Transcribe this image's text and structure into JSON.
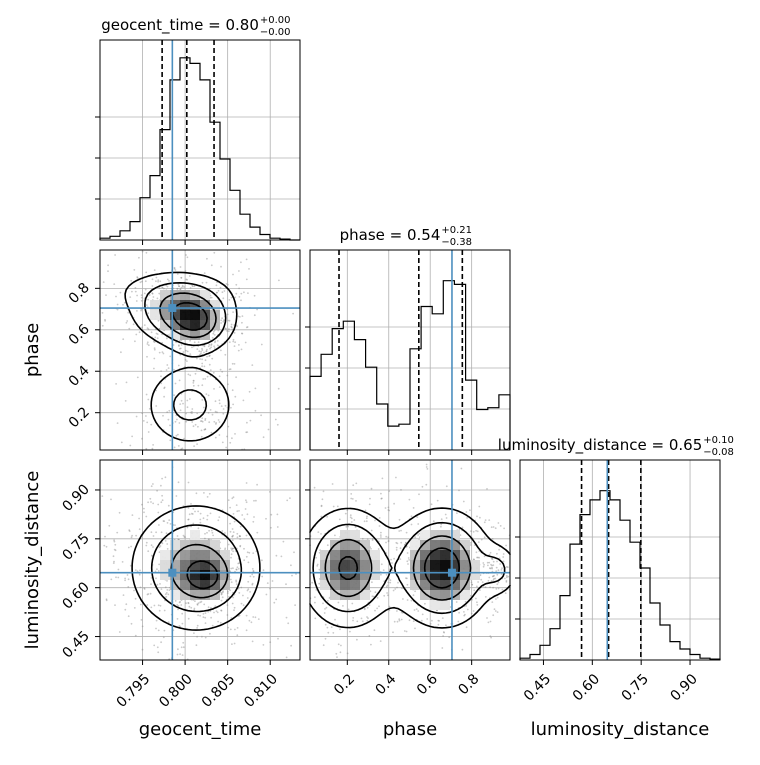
{
  "colors": {
    "truth": "#4c8fbf",
    "hist": "#000000",
    "grid": "#b0b0b0",
    "scatter": "#8a8a8a"
  },
  "chart_data": {
    "type": "corner",
    "parameters": [
      "geocent_time",
      "phase",
      "luminosity_distance"
    ],
    "truths": {
      "geocent_time": 0.7985,
      "phase": 0.705,
      "luminosity_distance": 0.646
    },
    "ranges": {
      "geocent_time": [
        0.79,
        0.8135
      ],
      "phase": [
        0.02,
        0.985
      ],
      "luminosity_distance": [
        0.378,
        0.992
      ]
    },
    "ticks": {
      "geocent_time": {
        "values": [
          0.795,
          0.8,
          0.805,
          0.81
        ],
        "labels": [
          "0.795",
          "0.800",
          "0.805",
          "0.810"
        ]
      },
      "phase": {
        "values": [
          0.2,
          0.4,
          0.6,
          0.8
        ],
        "labels": [
          "0.2",
          "0.4",
          "0.6",
          "0.8"
        ]
      },
      "luminosity_distance": {
        "values": [
          0.45,
          0.6,
          0.75,
          0.9
        ],
        "labels": [
          "0.45",
          "0.60",
          "0.75",
          "0.90"
        ]
      }
    },
    "titles": [
      {
        "param": "geocent_time",
        "text": "geocent_time = 0.80",
        "sup": "+0.00",
        "sub": "−0.00"
      },
      {
        "param": "phase",
        "text": "phase = 0.54",
        "sup": "+0.21",
        "sub": "−0.38"
      },
      {
        "param": "luminosity_distance",
        "text": "luminosity_distance = 0.65",
        "sup": "+0.10",
        "sub": "−0.08"
      }
    ],
    "quantiles": {
      "geocent_time": [
        0.7973,
        0.8002,
        0.8034
      ],
      "phase": [
        0.16,
        0.545,
        0.755
      ],
      "luminosity_distance": [
        0.567,
        0.65,
        0.749
      ]
    },
    "histograms": {
      "geocent_time": [
        0.01,
        0.02,
        0.05,
        0.1,
        0.23,
        0.35,
        0.6,
        0.87,
        0.99,
        0.96,
        0.87,
        0.64,
        0.44,
        0.27,
        0.14,
        0.07,
        0.03,
        0.01,
        0.005,
        0.0
      ],
      "phase": [
        0.4,
        0.52,
        0.66,
        0.7,
        0.6,
        0.45,
        0.25,
        0.13,
        0.14,
        0.55,
        0.78,
        0.74,
        0.92,
        0.9,
        0.38,
        0.22,
        0.23,
        0.3
      ],
      "luminosity_distance": [
        0.01,
        0.03,
        0.08,
        0.17,
        0.35,
        0.63,
        0.79,
        0.87,
        0.92,
        0.87,
        0.76,
        0.64,
        0.5,
        0.31,
        0.19,
        0.1,
        0.06,
        0.03,
        0.01,
        0.005
      ]
    }
  }
}
